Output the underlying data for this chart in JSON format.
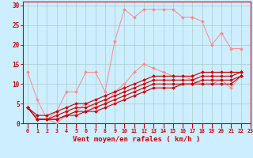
{
  "background_color": "#cceeff",
  "grid_color": "#aacccc",
  "xlabel": "Vent moyen/en rafales ( km/h )",
  "xlabel_color": "#cc0000",
  "tick_color": "#cc0000",
  "line_color_light": "#ff8888",
  "line_color_dark": "#cc0000",
  "xlim": [
    -0.5,
    23
  ],
  "ylim": [
    0,
    31
  ],
  "yticks": [
    0,
    5,
    10,
    15,
    20,
    25,
    30
  ],
  "xticks": [
    0,
    1,
    2,
    3,
    4,
    5,
    6,
    7,
    8,
    9,
    10,
    11,
    12,
    13,
    14,
    15,
    16,
    17,
    18,
    19,
    20,
    21,
    22,
    23
  ],
  "line1_x": [
    0,
    1,
    2,
    3,
    4,
    5,
    6,
    7,
    8,
    9,
    10,
    11,
    12,
    13,
    14,
    15,
    16,
    17,
    18,
    19,
    20,
    21,
    22
  ],
  "line1_y": [
    13,
    6,
    1,
    3,
    8,
    8,
    13,
    13,
    8,
    21,
    29,
    27,
    29,
    29,
    29,
    29,
    27,
    27,
    26,
    20,
    23,
    19,
    19
  ],
  "line2_x": [
    0,
    1,
    2,
    3,
    4,
    5,
    6,
    7,
    8,
    9,
    10,
    11,
    12,
    13,
    14,
    15,
    16,
    17,
    18,
    19,
    20,
    21,
    22
  ],
  "line2_y": [
    4,
    1,
    1,
    0,
    2,
    3,
    5,
    4,
    5,
    8,
    10,
    13,
    15,
    14,
    13,
    12,
    12,
    11,
    10,
    10,
    11,
    9,
    12
  ],
  "line3_x": [
    0,
    1,
    2,
    3,
    4,
    5,
    6,
    7,
    8,
    9,
    10,
    11,
    12,
    13,
    14,
    15,
    16,
    17,
    18,
    19,
    20,
    21,
    22
  ],
  "line3_y": [
    4,
    1,
    1,
    1,
    2,
    2,
    3,
    3,
    4,
    5,
    6,
    7,
    8,
    9,
    9,
    9,
    10,
    10,
    10,
    10,
    10,
    10,
    12
  ],
  "line4_x": [
    0,
    1,
    2,
    3,
    4,
    5,
    6,
    7,
    8,
    9,
    10,
    11,
    12,
    13,
    14,
    15,
    16,
    17,
    18,
    19,
    20,
    21,
    22
  ],
  "line4_y": [
    4,
    1,
    1,
    1,
    2,
    3,
    3,
    4,
    5,
    6,
    7,
    8,
    9,
    10,
    10,
    10,
    10,
    10,
    11,
    11,
    11,
    11,
    12
  ],
  "line5_x": [
    0,
    1,
    2,
    3,
    4,
    5,
    6,
    7,
    8,
    9,
    10,
    11,
    12,
    13,
    14,
    15,
    16,
    17,
    18,
    19,
    20,
    21,
    22
  ],
  "line5_y": [
    4,
    1,
    1,
    2,
    3,
    4,
    4,
    5,
    6,
    7,
    8,
    9,
    10,
    11,
    11,
    11,
    11,
    11,
    12,
    12,
    12,
    12,
    13
  ],
  "line6_x": [
    0,
    1,
    2,
    3,
    4,
    5,
    6,
    7,
    8,
    9,
    10,
    11,
    12,
    13,
    14,
    15,
    16,
    17,
    18,
    19,
    20,
    21,
    22
  ],
  "line6_y": [
    4,
    2,
    2,
    3,
    4,
    5,
    5,
    6,
    7,
    8,
    9,
    10,
    11,
    12,
    12,
    12,
    12,
    12,
    13,
    13,
    13,
    13,
    13
  ]
}
